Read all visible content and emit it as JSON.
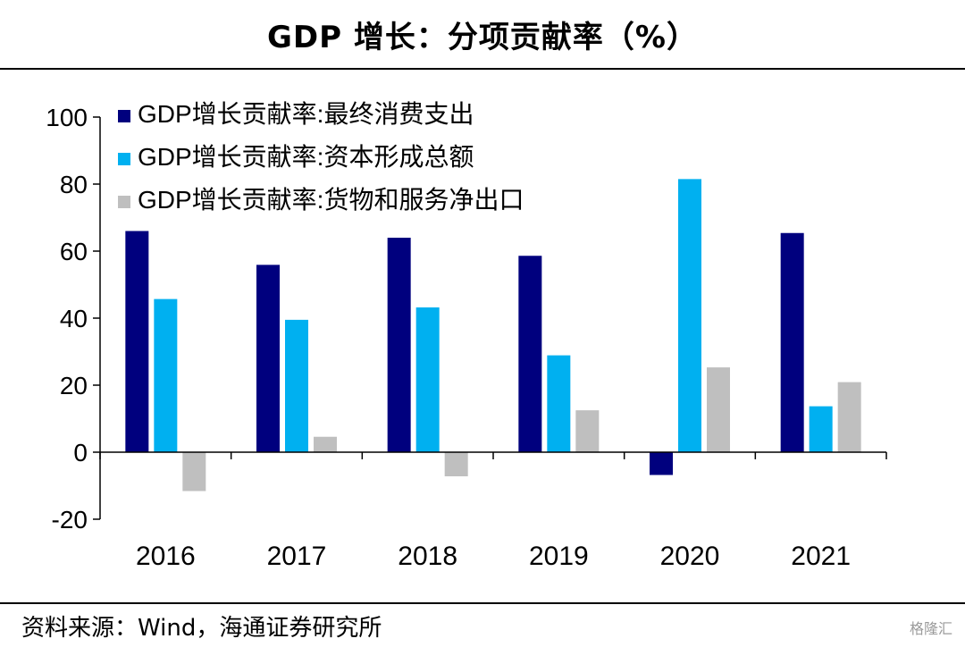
{
  "header": {
    "title": "GDP 增长：分项贡献率（%）"
  },
  "footer": {
    "source": "资料来源：Wind，海通证券研究所",
    "watermark": "格隆汇"
  },
  "chart_data": {
    "type": "bar",
    "title": "GDP 增长：分项贡献率（%）",
    "xlabel": "",
    "ylabel": "",
    "categories": [
      "2016",
      "2017",
      "2018",
      "2019",
      "2020",
      "2021"
    ],
    "ylim": [
      -20,
      100
    ],
    "yticks": [
      -20,
      0,
      20,
      40,
      60,
      80,
      100
    ],
    "grid": false,
    "legend_position": "top-left",
    "series": [
      {
        "name": "GDP增长贡献率:最终消费支出",
        "color": "#00007e",
        "values": [
          66.0,
          55.9,
          64.0,
          58.6,
          -6.8,
          65.4
        ]
      },
      {
        "name": "GDP增长贡献率:资本形成总额",
        "color": "#00b0f0",
        "values": [
          45.7,
          39.5,
          43.2,
          28.9,
          81.5,
          13.7
        ]
      },
      {
        "name": "GDP增长贡献率:货物和服务净出口",
        "color": "#bfbfbf",
        "values": [
          -11.6,
          4.6,
          -7.2,
          12.5,
          25.3,
          20.9
        ]
      }
    ]
  }
}
